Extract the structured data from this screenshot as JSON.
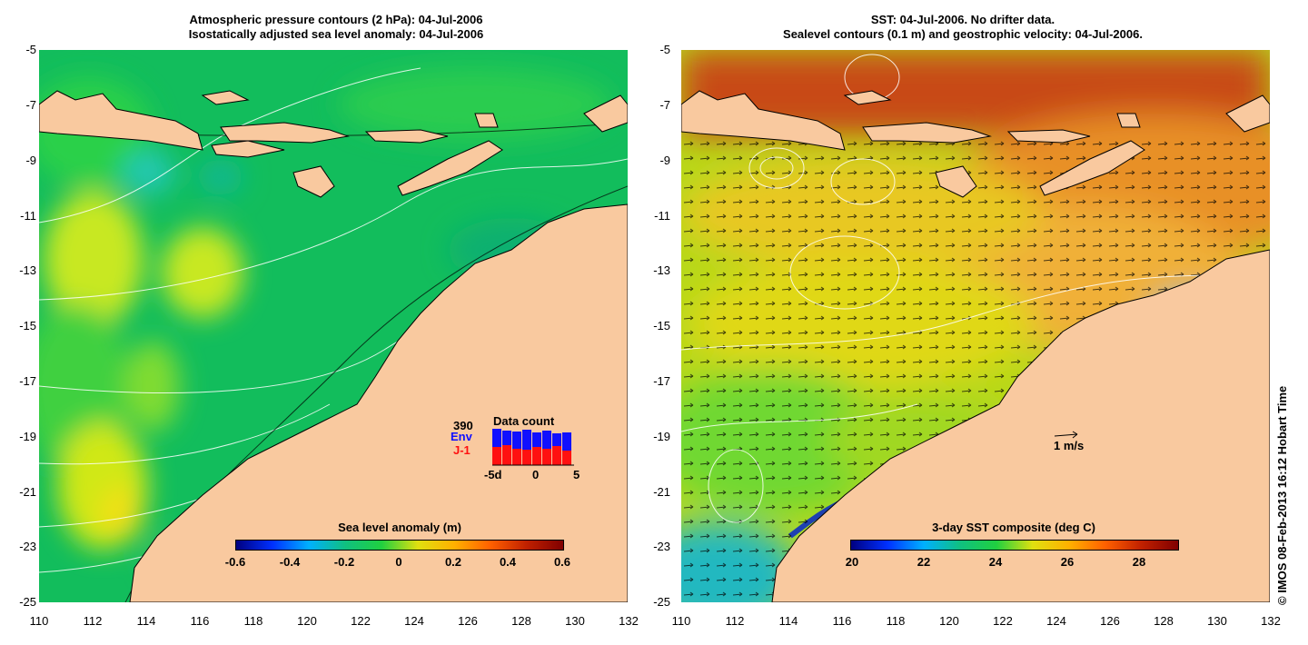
{
  "left_panel": {
    "title_line1": "Atmospheric pressure contours (2 hPa): 04-Jul-2006",
    "title_line2": "Isostatically adjusted sea level anomaly: 04-Jul-2006",
    "colorbar_title": "Sea level anomaly (m)",
    "colorbar_ticks": [
      "-0.6",
      "-0.4",
      "-0.2",
      "0",
      "0.2",
      "0.4",
      "0.6"
    ],
    "data_count": {
      "title": "Data count",
      "number": "390",
      "env_label": "Env",
      "j1_label": "J-1",
      "x_ticks": [
        "-5d",
        "0",
        "5"
      ],
      "env_color": "#1010ff",
      "j1_color": "#ff1010"
    }
  },
  "right_panel": {
    "title_line1": "SST: 04-Jul-2006. No drifter data.",
    "title_line2": "Sealevel contours (0.1 m) and geostrophic velocity: 04-Jul-2006.",
    "colorbar_title": "3-day SST composite (deg C)",
    "colorbar_ticks": [
      "20",
      "22",
      "24",
      "26",
      "28"
    ],
    "scale_label": "1 m/s"
  },
  "axes": {
    "y_ticks": [
      "-5",
      "-7",
      "-9",
      "-11",
      "-13",
      "-15",
      "-17",
      "-19",
      "-21",
      "-23",
      "-25"
    ],
    "x_ticks": [
      "110",
      "112",
      "114",
      "116",
      "118",
      "120",
      "122",
      "124",
      "126",
      "128",
      "130",
      "132"
    ],
    "lat_range": [
      -25,
      -5
    ],
    "lon_range": [
      110,
      132
    ]
  },
  "credit": "© IMOS 08-Feb-2013 16:12 Hobart Time",
  "colors": {
    "land": "#f9c99f",
    "sla_background": "#10c060",
    "sst_warm": "#c04010",
    "sst_mid": "#e0d010"
  }
}
